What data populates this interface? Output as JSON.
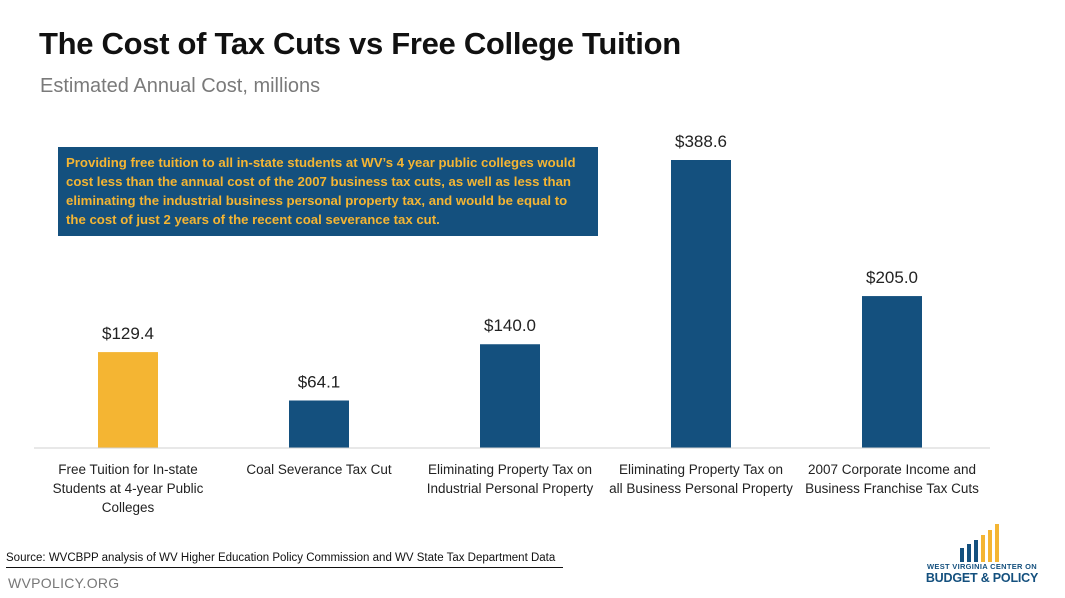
{
  "title": "The Cost of Tax Cuts vs Free College Tuition",
  "subtitle": "Estimated Annual Cost, millions",
  "callout": "Providing free tuition to all in-state students at WV’s 4 year public colleges would cost less than the annual cost of the 2007 business tax cuts, as well as less than eliminating the industrial business personal property tax, and would be equal to the cost of just 2 years of the recent coal severance tax cut.",
  "source": "Source: WVCBPP analysis of WV Higher Education Policy Commission and WV State Tax Department Data",
  "website": "WVPOLICY.ORG",
  "logo": {
    "line1": "WEST VIRGINIA CENTER ON",
    "line2": "BUDGET & POLICY"
  },
  "colors": {
    "highlight": "#f4b533",
    "primary": "#14507e",
    "callout_text": "#f4b533"
  },
  "chart_data": {
    "type": "bar",
    "categories": [
      [
        "Free Tuition for In-state",
        "Students at 4-year Public",
        "Colleges"
      ],
      [
        "Coal Severance Tax Cut"
      ],
      [
        "Eliminating Property Tax on",
        "Industrial Personal Property"
      ],
      [
        "Eliminating Property Tax on",
        "all Business Personal Property"
      ],
      [
        "2007 Corporate Income and",
        "Business Franchise Tax Cuts"
      ]
    ],
    "values": [
      129.4,
      64.1,
      140.0,
      388.6,
      205.0
    ],
    "value_labels": [
      "$129.4",
      "$64.1",
      "$140.0",
      "$388.6",
      "$205.0"
    ],
    "bar_colors": [
      "#f4b533",
      "#14507e",
      "#14507e",
      "#14507e",
      "#14507e"
    ],
    "title": "The Cost of Tax Cuts vs Free College Tuition",
    "ylabel": "",
    "ylim": [
      0,
      388.6
    ],
    "grid": false
  }
}
